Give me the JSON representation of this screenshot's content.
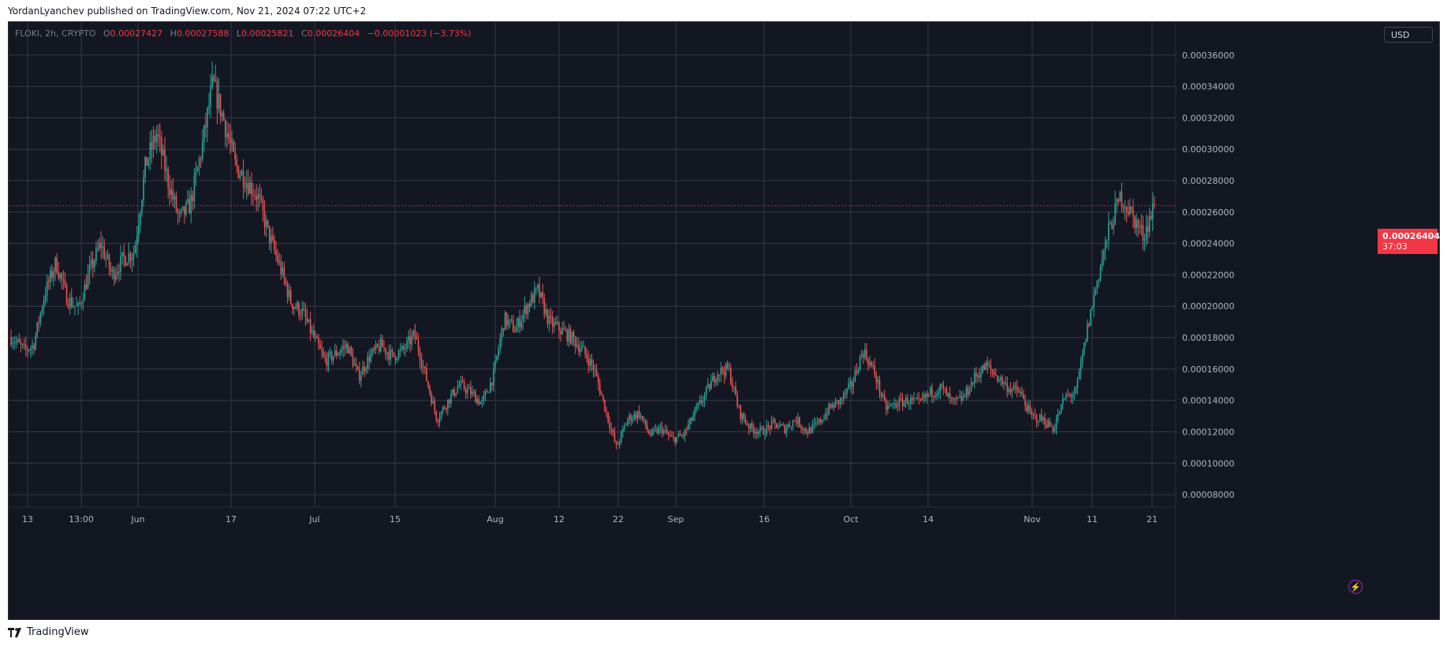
{
  "header": {
    "publish_text": "YordanLyanchev published on TradingView.com, Nov 21, 2024 07:22 UTC+2"
  },
  "legend": {
    "symbol": "FLOKI, 2h, CRYPTO",
    "open_key": "O",
    "open": "0.00027427",
    "high_key": "H",
    "high": "0.00027588",
    "low_key": "L",
    "low": "0.00025821",
    "close_key": "C",
    "close": "0.00026404",
    "change": "−0.00001023 (−3.73%)"
  },
  "currency": "USD",
  "price_label": {
    "price": "0.00026404",
    "countdown": "37:03"
  },
  "footer": {
    "brand": "TradingView"
  },
  "colors": {
    "background": "#131722",
    "grid": "#363a45",
    "up": "#26a69a",
    "down": "#ef5350",
    "price_line": "#f23645",
    "axis_text": "#b2b5be"
  },
  "icons": [
    "lightning-icon",
    "tradingview-logo-icon"
  ],
  "chart_data": {
    "type": "candlestick",
    "symbol": "FLOKI",
    "interval": "2h",
    "ylim": [
      7.2e-05,
      0.000381
    ],
    "y_ticks": [
      "0.00008000",
      "0.00010000",
      "0.00012000",
      "0.00014000",
      "0.00016000",
      "0.00018000",
      "0.00020000",
      "0.00022000",
      "0.00024000",
      "0.00026000",
      "0.00028000",
      "0.00030000",
      "0.00032000",
      "0.00034000",
      "0.00036000"
    ],
    "x_ticks": [
      "13",
      "13:00",
      "Jun",
      "17",
      "Jul",
      "15",
      "Aug",
      "12",
      "22",
      "Sep",
      "16",
      "Oct",
      "14",
      "Nov",
      "11",
      "21"
    ],
    "last_price": 0.00026404,
    "grid": true,
    "path_points": [
      [
        0,
        0.00018
      ],
      [
        1.2,
        0.000172
      ],
      [
        2,
        0.000175
      ],
      [
        3,
        0.000208
      ],
      [
        4,
        0.000228
      ],
      [
        5,
        0.000205
      ],
      [
        6,
        0.000198
      ],
      [
        7,
        0.000222
      ],
      [
        8,
        0.00024
      ],
      [
        9,
        0.00022
      ],
      [
        10,
        0.00023
      ],
      [
        11,
        0.000235
      ],
      [
        12,
        0.00029
      ],
      [
        13,
        0.00031
      ],
      [
        14,
        0.00028
      ],
      [
        15,
        0.000255
      ],
      [
        16,
        0.000265
      ],
      [
        17,
        0.0003
      ],
      [
        18,
        0.000342
      ],
      [
        19,
        0.000318
      ],
      [
        20,
        0.00029
      ],
      [
        21,
        0.00028
      ],
      [
        22,
        0.00027
      ],
      [
        23,
        0.000245
      ],
      [
        24,
        0.000225
      ],
      [
        25,
        0.000202
      ],
      [
        26,
        0.000196
      ],
      [
        27,
        0.00018
      ],
      [
        28,
        0.000165
      ],
      [
        29,
        0.00017
      ],
      [
        30,
        0.000175
      ],
      [
        31,
        0.000155
      ],
      [
        32,
        0.000168
      ],
      [
        33,
        0.000175
      ],
      [
        34,
        0.000168
      ],
      [
        35,
        0.000172
      ],
      [
        36,
        0.000182
      ],
      [
        37,
        0.000155
      ],
      [
        38,
        0.000128
      ],
      [
        39,
        0.00014
      ],
      [
        40,
        0.00015
      ],
      [
        41,
        0.000145
      ],
      [
        42,
        0.000138
      ],
      [
        43,
        0.000155
      ],
      [
        44,
        0.000192
      ],
      [
        45,
        0.000185
      ],
      [
        46,
        0.0002
      ],
      [
        47,
        0.00021
      ],
      [
        48,
        0.00019
      ],
      [
        49,
        0.000185
      ],
      [
        50,
        0.00018
      ],
      [
        51,
        0.000172
      ],
      [
        52,
        0.00016
      ],
      [
        53,
        0.000135
      ],
      [
        54,
        0.00011
      ],
      [
        55,
        0.000128
      ],
      [
        56,
        0.000132
      ],
      [
        57,
        0.000118
      ],
      [
        58,
        0.000122
      ],
      [
        59,
        0.000115
      ],
      [
        60,
        0.000118
      ],
      [
        61,
        0.000132
      ],
      [
        62,
        0.000145
      ],
      [
        63,
        0.000158
      ],
      [
        64,
        0.00016
      ],
      [
        65,
        0.000132
      ],
      [
        66,
        0.000122
      ],
      [
        67,
        0.00012
      ],
      [
        68,
        0.000125
      ],
      [
        69,
        0.000122
      ],
      [
        70,
        0.000128
      ],
      [
        71,
        0.00012
      ],
      [
        72,
        0.000125
      ],
      [
        73,
        0.000135
      ],
      [
        74,
        0.00014
      ],
      [
        75,
        0.00015
      ],
      [
        76,
        0.000172
      ],
      [
        77,
        0.000158
      ],
      [
        78,
        0.000135
      ],
      [
        79,
        0.000138
      ],
      [
        80,
        0.00014
      ],
      [
        81,
        0.000138
      ],
      [
        82,
        0.000145
      ],
      [
        83,
        0.000148
      ],
      [
        84,
        0.000138
      ],
      [
        85,
        0.000142
      ],
      [
        86,
        0.000155
      ],
      [
        87,
        0.000162
      ],
      [
        88,
        0.000155
      ],
      [
        89,
        0.000148
      ],
      [
        90,
        0.000145
      ],
      [
        91,
        0.00013
      ],
      [
        92,
        0.000128
      ],
      [
        93,
        0.000122
      ],
      [
        94,
        0.000142
      ],
      [
        95,
        0.000145
      ],
      [
        96,
        0.000185
      ],
      [
        97,
        0.00022
      ],
      [
        98,
        0.00025
      ],
      [
        99,
        0.00027
      ],
      [
        100,
        0.000258
      ],
      [
        101,
        0.000245
      ],
      [
        102,
        0.000264
      ]
    ]
  }
}
